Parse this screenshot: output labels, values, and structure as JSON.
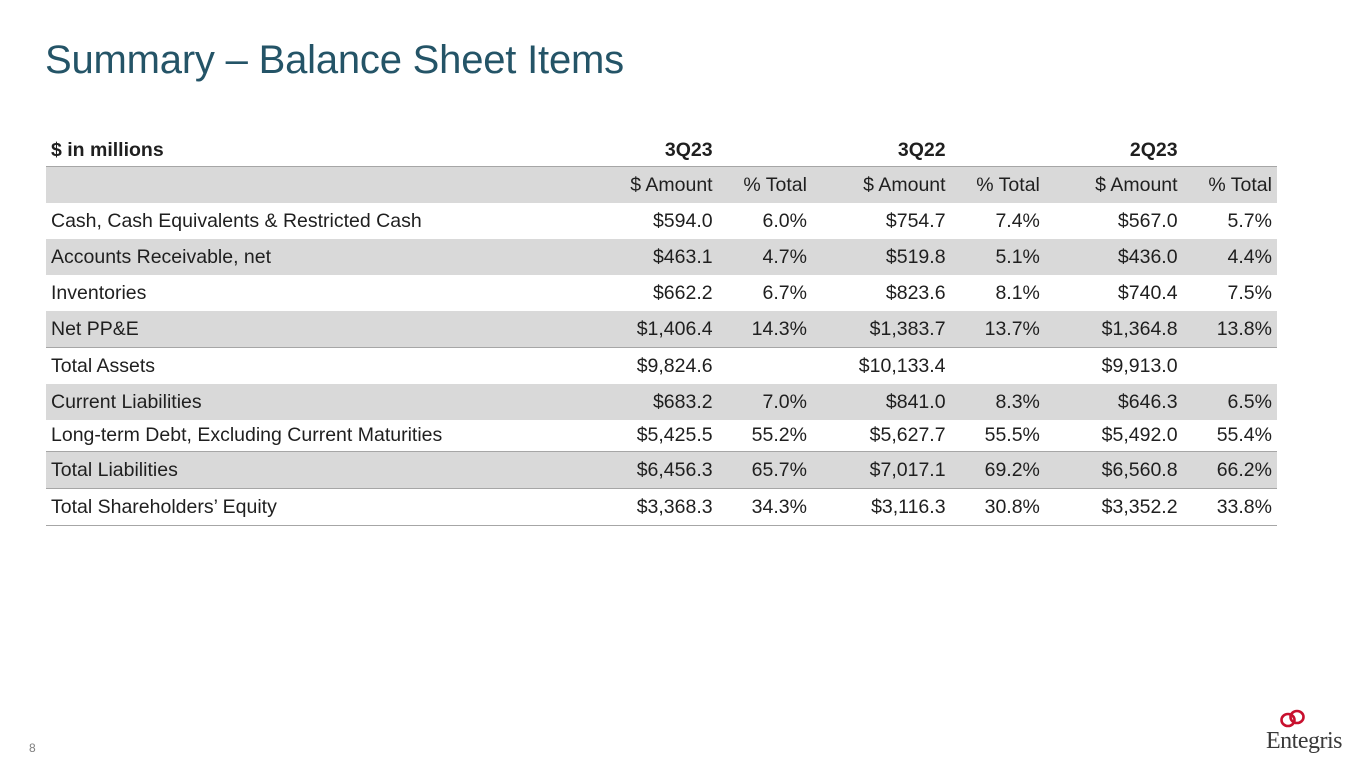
{
  "slide": {
    "title": "Summary – Balance Sheet Items",
    "page_number": "8",
    "logo_text": "Entegris",
    "accent_color": "#245467",
    "logo_color": "#c8102e"
  },
  "table": {
    "unit_label": "$ in millions",
    "periods": [
      "3Q23",
      "3Q22",
      "2Q23"
    ],
    "sub_headers": [
      "$ Amount",
      "% Total",
      "$ Amount",
      "% Total",
      "$ Amount",
      "% Total"
    ],
    "rows": [
      {
        "label": "Cash, Cash Equivalents & Restricted Cash",
        "values": [
          "$594.0",
          "6.0%",
          "$754.7",
          "7.4%",
          "$567.0",
          "5.7%"
        ]
      },
      {
        "label": "Accounts Receivable, net",
        "values": [
          "$463.1",
          "4.7%",
          "$519.8",
          "5.1%",
          "$436.0",
          "4.4%"
        ]
      },
      {
        "label": "Inventories",
        "values": [
          "$662.2",
          "6.7%",
          "$823.6",
          "8.1%",
          "$740.4",
          "7.5%"
        ]
      },
      {
        "label": "Net PP&E",
        "values": [
          "$1,406.4",
          "14.3%",
          "$1,383.7",
          "13.7%",
          "$1,364.8",
          "13.8%"
        ]
      },
      {
        "label": "Total Assets",
        "values": [
          "$9,824.6",
          "",
          "$10,133.4",
          "",
          "$9,913.0",
          ""
        ]
      },
      {
        "label": "Current Liabilities",
        "values": [
          "$683.2",
          "7.0%",
          "$841.0",
          "8.3%",
          "$646.3",
          "6.5%"
        ]
      },
      {
        "label": "Long-term Debt, Excluding Current Maturities",
        "values": [
          "$5,425.5",
          "55.2%",
          "$5,627.7",
          "55.5%",
          "$5,492.0",
          "55.4%"
        ]
      },
      {
        "label": "Total Liabilities",
        "values": [
          "$6,456.3",
          "65.7%",
          "$7,017.1",
          "69.2%",
          "$6,560.8",
          "66.2%"
        ]
      },
      {
        "label": "Total Shareholders’ Equity",
        "values": [
          "$3,368.3",
          "34.3%",
          "$3,116.3",
          "30.8%",
          "$3,352.2",
          "33.8%"
        ]
      }
    ]
  }
}
